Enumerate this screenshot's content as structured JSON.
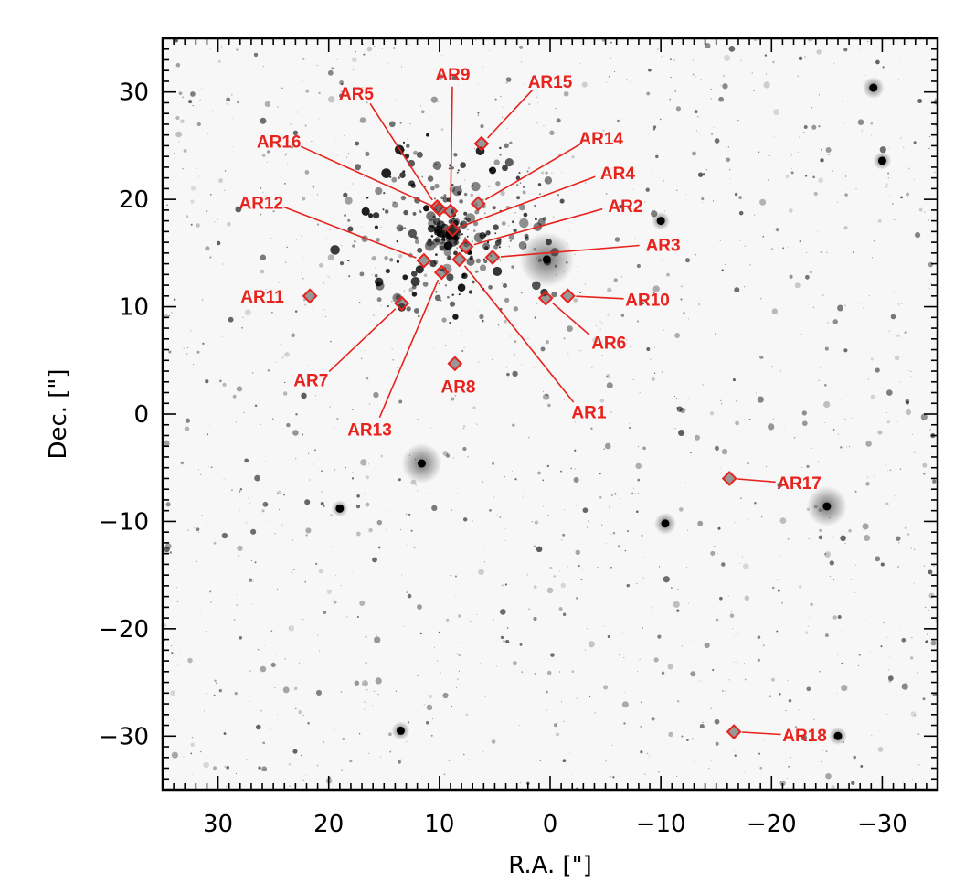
{
  "chart_data": {
    "type": "scatter",
    "title": "",
    "xlabel": "R.A. [\"]",
    "ylabel": "Dec. [\"]",
    "xlim": [
      35,
      -35
    ],
    "ylim": [
      -35,
      35
    ],
    "x_ticks": [
      30,
      20,
      10,
      0,
      -10,
      -20,
      -30
    ],
    "x_tick_labels": [
      "30",
      "20",
      "10",
      "0",
      "−10",
      "−20",
      "−30"
    ],
    "y_ticks": [
      30,
      20,
      10,
      0,
      -10,
      -20,
      -30
    ],
    "y_tick_labels": [
      "30",
      "20",
      "10",
      "0",
      "−10",
      "−20",
      "−30"
    ],
    "grid": false,
    "legend": "none",
    "background": "inverted greyscale star field image",
    "marker": "diamond",
    "marker_color": "#e8221c",
    "label_color": "#e8221c",
    "series": [
      {
        "name": "",
        "points": [
          {
            "label": "AR1",
            "x": 8.2,
            "y": 14.4,
            "label_x": -3.5,
            "label_y": 0.2
          },
          {
            "label": "AR2",
            "x": 7.6,
            "y": 15.6,
            "label_x": -6.8,
            "label_y": 19.4
          },
          {
            "label": "AR3",
            "x": 5.2,
            "y": 14.6,
            "label_x": -10.2,
            "label_y": 15.8
          },
          {
            "label": "AR4",
            "x": 8.8,
            "y": 17.2,
            "label_x": -6.1,
            "label_y": 22.5
          },
          {
            "label": "AR5",
            "x": 10.2,
            "y": 19.3,
            "label_x": 17.5,
            "label_y": 29.9
          },
          {
            "label": "AR6",
            "x": 0.4,
            "y": 10.8,
            "label_x": -5.3,
            "label_y": 6.7
          },
          {
            "label": "AR7",
            "x": 13.4,
            "y": 10.3,
            "label_x": 21.6,
            "label_y": 3.2
          },
          {
            "label": "AR8",
            "x": 8.6,
            "y": 4.7,
            "label_x": 8.3,
            "label_y": 2.6
          },
          {
            "label": "AR9",
            "x": 9.0,
            "y": 18.9,
            "label_x": 8.8,
            "label_y": 31.7
          },
          {
            "label": "AR10",
            "x": -1.6,
            "y": 11.0,
            "label_x": -8.8,
            "label_y": 10.7
          },
          {
            "label": "AR11",
            "x": 21.7,
            "y": 11.0,
            "label_x": 26.0,
            "label_y": 11.0
          },
          {
            "label": "AR12",
            "x": 11.4,
            "y": 14.3,
            "label_x": 26.1,
            "label_y": 19.7
          },
          {
            "label": "AR13",
            "x": 9.8,
            "y": 13.2,
            "label_x": 16.3,
            "label_y": -1.4
          },
          {
            "label": "AR14",
            "x": 6.5,
            "y": 19.6,
            "label_x": -4.6,
            "label_y": 25.7
          },
          {
            "label": "AR15",
            "x": 6.2,
            "y": 25.2,
            "label_x": 0.0,
            "label_y": 31.0
          },
          {
            "label": "AR16",
            "x": 10.0,
            "y": 19.1,
            "label_x": 24.5,
            "label_y": 25.4
          },
          {
            "label": "AR17",
            "x": -16.2,
            "y": -6.0,
            "label_x": -22.5,
            "label_y": -6.4
          },
          {
            "label": "AR18",
            "x": -16.6,
            "y": -29.6,
            "label_x": -23.0,
            "label_y": -29.9
          }
        ]
      }
    ]
  }
}
